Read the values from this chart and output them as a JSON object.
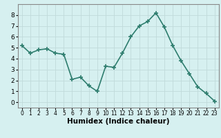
{
  "x": [
    0,
    1,
    2,
    3,
    4,
    5,
    6,
    7,
    8,
    9,
    10,
    11,
    12,
    13,
    14,
    15,
    16,
    17,
    18,
    19,
    20,
    21,
    22,
    23
  ],
  "y": [
    5.2,
    4.5,
    4.8,
    4.9,
    4.5,
    4.4,
    2.1,
    2.3,
    1.5,
    1.0,
    3.3,
    3.2,
    4.5,
    6.0,
    7.0,
    7.4,
    8.2,
    6.9,
    5.2,
    3.8,
    2.6,
    1.4,
    0.8,
    0.1
  ],
  "line_color": "#2e7d6e",
  "marker": "+",
  "marker_size": 4,
  "background_color": "#d6f0f0",
  "grid_color": "#c0dada",
  "xlabel": "Humidex (Indice chaleur)",
  "xlim": [
    -0.5,
    23.5
  ],
  "ylim": [
    -0.5,
    9.0
  ],
  "yticks": [
    0,
    1,
    2,
    3,
    4,
    5,
    6,
    7,
    8
  ],
  "xticks": [
    0,
    1,
    2,
    3,
    4,
    5,
    6,
    7,
    8,
    9,
    10,
    11,
    12,
    13,
    14,
    15,
    16,
    17,
    18,
    19,
    20,
    21,
    22,
    23
  ],
  "x_tick_fontsize": 5.5,
  "y_tick_fontsize": 6.5,
  "xlabel_fontsize": 7.5,
  "line_width": 1.2,
  "marker_edge_width": 1.2,
  "spine_color": "#888888"
}
